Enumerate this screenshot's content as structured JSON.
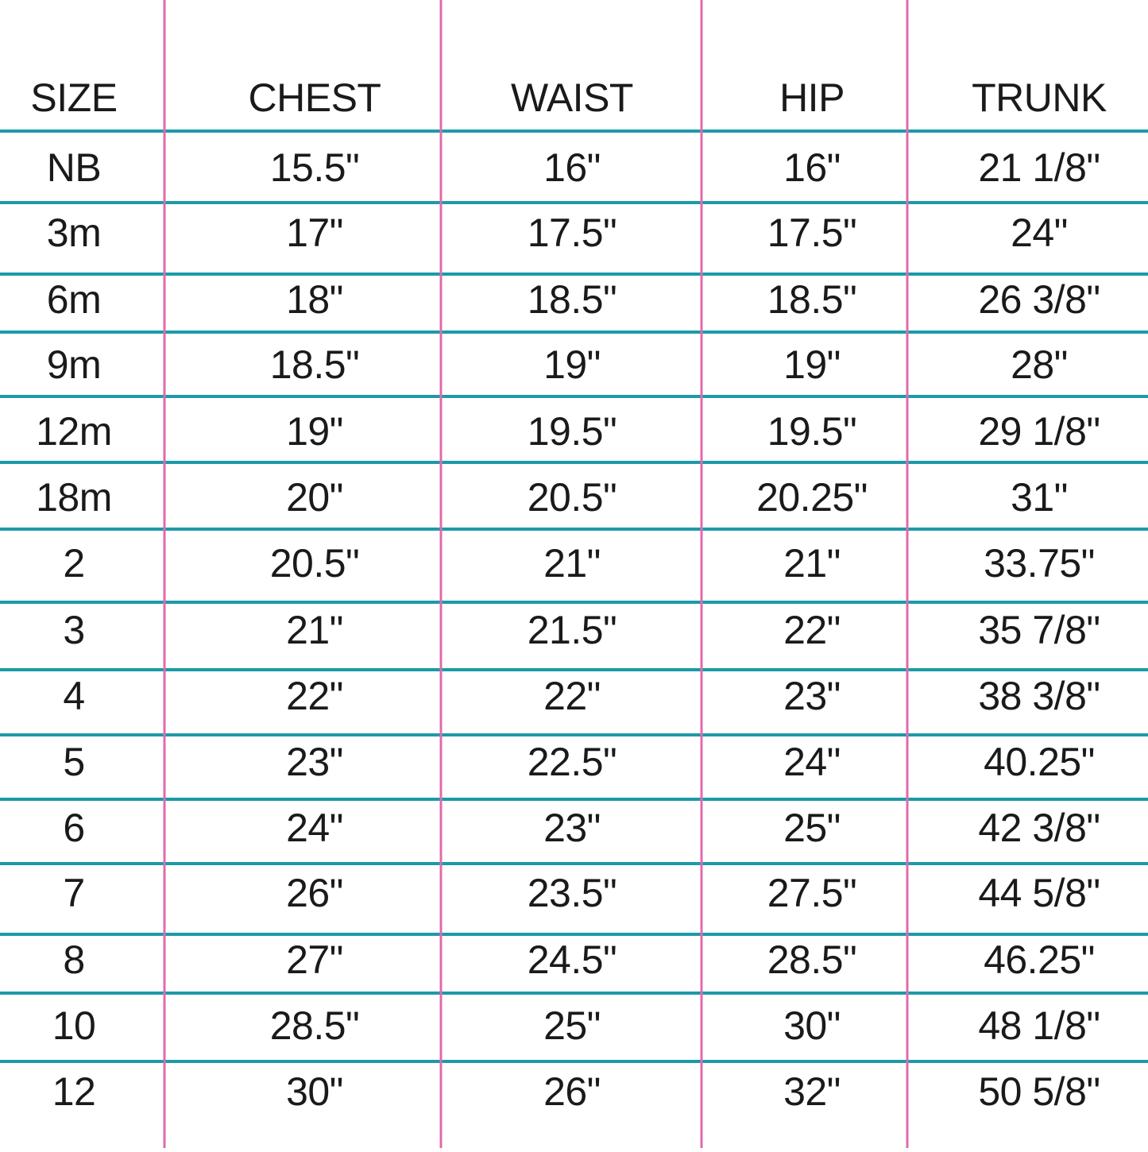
{
  "table": {
    "header": [
      "SIZE",
      "CHEST",
      "WAIST",
      "HIP",
      "TRUNK"
    ],
    "rows": [
      [
        "NB",
        "15.5\"",
        "16\"",
        "16\"",
        "21 1/8\""
      ],
      [
        "3m",
        "17\"",
        "17.5\"",
        "17.5\"",
        "24\""
      ],
      [
        "6m",
        "18\"",
        "18.5\"",
        "18.5\"",
        "26 3/8\""
      ],
      [
        "9m",
        "18.5\"",
        "19\"",
        "19\"",
        "28\""
      ],
      [
        "12m",
        "19\"",
        "19.5\"",
        "19.5\"",
        "29 1/8\""
      ],
      [
        "18m",
        "20\"",
        "20.5\"",
        "20.25\"",
        "31\""
      ],
      [
        "2",
        "20.5\"",
        "21\"",
        "21\"",
        "33.75\""
      ],
      [
        "3",
        "21\"",
        "21.5\"",
        "22\"",
        "35 7/8\""
      ],
      [
        "4",
        "22\"",
        "22\"",
        "23\"",
        "38 3/8\""
      ],
      [
        "5",
        "23\"",
        "22.5\"",
        "24\"",
        "40.25\""
      ],
      [
        "6",
        "24\"",
        "23\"",
        "25\"",
        "42 3/8\""
      ],
      [
        "7",
        "26\"",
        "23.5\"",
        "27.5\"",
        "44 5/8\""
      ],
      [
        "8",
        "27\"",
        "24.5\"",
        "28.5\"",
        "46.25\""
      ],
      [
        "10",
        "28.5\"",
        "25\"",
        "30\"",
        "48 1/8\""
      ],
      [
        "12",
        "30\"",
        "26\"",
        "32\"",
        "50 5/8\""
      ]
    ]
  }
}
